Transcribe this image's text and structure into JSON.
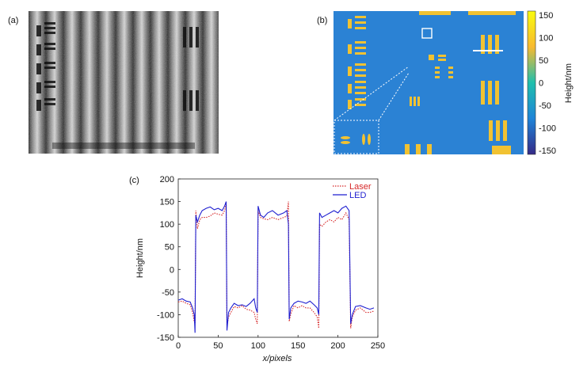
{
  "panels": {
    "a": "(a)",
    "b": "(b)",
    "c": "(c)"
  },
  "colorbar": {
    "label": "Height/nm",
    "ticks": [
      "150",
      "100",
      "50",
      "0",
      "-50",
      "-100",
      "-150"
    ],
    "colors": [
      "#f9fb0e",
      "#f8ba30",
      "#1fbfad",
      "#1e84d8",
      "#352a87"
    ]
  },
  "chart_data": {
    "type": "line",
    "title": "",
    "xlabel": "x/pixels",
    "ylabel": "Height/nm",
    "xlim": [
      0,
      250
    ],
    "ylim": [
      -150,
      200
    ],
    "xticks": [
      "0",
      "50",
      "100",
      "150",
      "200",
      "250"
    ],
    "yticks": [
      "200",
      "150",
      "100",
      "50",
      "0",
      "-50",
      "-100",
      "-150"
    ],
    "legend_position": "top-right",
    "series": [
      {
        "name": "Laser",
        "color": "#d62728",
        "style": "dotted",
        "points": [
          [
            0,
            -72
          ],
          [
            5,
            -70
          ],
          [
            10,
            -75
          ],
          [
            15,
            -78
          ],
          [
            18,
            -95
          ],
          [
            20,
            -115
          ],
          [
            21,
            -120
          ],
          [
            22,
            130
          ],
          [
            24,
            90
          ],
          [
            27,
            110
          ],
          [
            30,
            115
          ],
          [
            35,
            115
          ],
          [
            40,
            118
          ],
          [
            45,
            125
          ],
          [
            50,
            122
          ],
          [
            55,
            120
          ],
          [
            58,
            130
          ],
          [
            60,
            145
          ],
          [
            61,
            -125
          ],
          [
            63,
            -105
          ],
          [
            66,
            -95
          ],
          [
            70,
            -82
          ],
          [
            75,
            -85
          ],
          [
            80,
            -80
          ],
          [
            85,
            -88
          ],
          [
            90,
            -90
          ],
          [
            95,
            -95
          ],
          [
            97,
            -110
          ],
          [
            99,
            -120
          ],
          [
            100,
            130
          ],
          [
            103,
            115
          ],
          [
            107,
            112
          ],
          [
            112,
            110
          ],
          [
            118,
            115
          ],
          [
            125,
            110
          ],
          [
            132,
            115
          ],
          [
            136,
            118
          ],
          [
            138,
            150
          ],
          [
            139,
            -115
          ],
          [
            141,
            -98
          ],
          [
            145,
            -80
          ],
          [
            150,
            -85
          ],
          [
            155,
            -80
          ],
          [
            160,
            -85
          ],
          [
            165,
            -85
          ],
          [
            170,
            -95
          ],
          [
            174,
            -105
          ],
          [
            176,
            -130
          ],
          [
            177,
            100
          ],
          [
            180,
            95
          ],
          [
            185,
            105
          ],
          [
            190,
            110
          ],
          [
            195,
            105
          ],
          [
            200,
            115
          ],
          [
            205,
            110
          ],
          [
            210,
            125
          ],
          [
            214,
            110
          ],
          [
            216,
            -130
          ],
          [
            218,
            -105
          ],
          [
            222,
            -90
          ],
          [
            228,
            -85
          ],
          [
            235,
            -95
          ],
          [
            240,
            -95
          ],
          [
            245,
            -92
          ]
        ]
      },
      {
        "name": "LED",
        "color": "#1f1fd0",
        "style": "solid",
        "points": [
          [
            0,
            -68
          ],
          [
            5,
            -65
          ],
          [
            10,
            -70
          ],
          [
            15,
            -72
          ],
          [
            18,
            -85
          ],
          [
            20,
            -100
          ],
          [
            21,
            -140
          ],
          [
            22,
            120
          ],
          [
            24,
            105
          ],
          [
            27,
            120
          ],
          [
            30,
            130
          ],
          [
            35,
            135
          ],
          [
            40,
            138
          ],
          [
            45,
            132
          ],
          [
            50,
            135
          ],
          [
            55,
            130
          ],
          [
            58,
            140
          ],
          [
            60,
            150
          ],
          [
            61,
            -135
          ],
          [
            63,
            -95
          ],
          [
            66,
            -85
          ],
          [
            70,
            -75
          ],
          [
            75,
            -80
          ],
          [
            80,
            -78
          ],
          [
            85,
            -82
          ],
          [
            90,
            -75
          ],
          [
            95,
            -65
          ],
          [
            97,
            -85
          ],
          [
            99,
            -95
          ],
          [
            100,
            140
          ],
          [
            103,
            120
          ],
          [
            107,
            115
          ],
          [
            112,
            125
          ],
          [
            118,
            130
          ],
          [
            125,
            120
          ],
          [
            132,
            125
          ],
          [
            136,
            130
          ],
          [
            138,
            100
          ],
          [
            139,
            -110
          ],
          [
            141,
            -85
          ],
          [
            145,
            -75
          ],
          [
            150,
            -70
          ],
          [
            155,
            -72
          ],
          [
            160,
            -75
          ],
          [
            165,
            -70
          ],
          [
            170,
            -78
          ],
          [
            174,
            -85
          ],
          [
            176,
            -100
          ],
          [
            177,
            125
          ],
          [
            180,
            115
          ],
          [
            185,
            120
          ],
          [
            190,
            125
          ],
          [
            195,
            130
          ],
          [
            200,
            125
          ],
          [
            205,
            135
          ],
          [
            210,
            140
          ],
          [
            214,
            130
          ],
          [
            216,
            -120
          ],
          [
            218,
            -100
          ],
          [
            222,
            -82
          ],
          [
            228,
            -80
          ],
          [
            235,
            -85
          ],
          [
            240,
            -88
          ],
          [
            245,
            -85
          ]
        ]
      }
    ]
  }
}
